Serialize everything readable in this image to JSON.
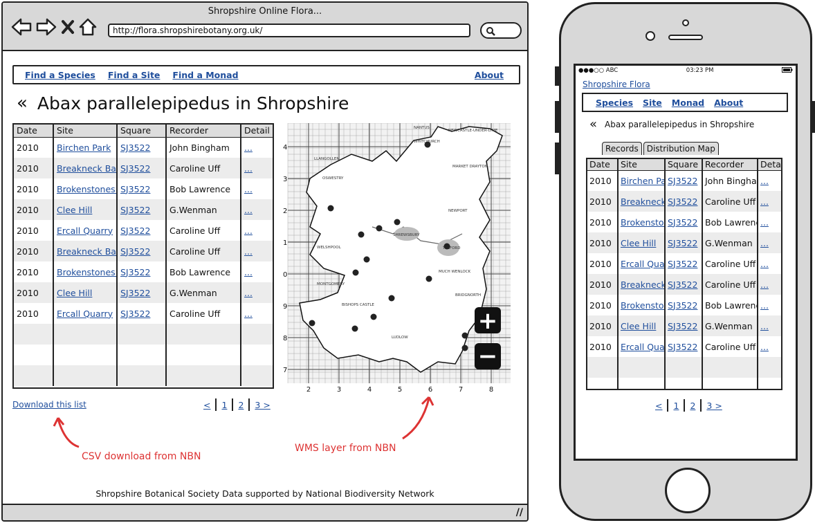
{
  "browser": {
    "window_title": "Shropshire Online Flora...",
    "url": "http://flora.shropshirebotany.org.uk/",
    "icons": [
      "back-arrow-icon",
      "forward-arrow-icon",
      "close-icon",
      "home-icon",
      "search-icon"
    ]
  },
  "menu": {
    "items": [
      "Find a Species",
      "Find a Site",
      "Find a Monad"
    ],
    "about": "About"
  },
  "page": {
    "back_glyph": "«",
    "title": "Abax parallelepipedus in Shropshire",
    "download": "Download this list",
    "footer": "Shropshire Botanical Society Data supported by National Biodiversity Network"
  },
  "table": {
    "headers": [
      "Date",
      "Site",
      "Square",
      "Recorder",
      "Detail"
    ],
    "rows": [
      [
        "2010",
        "Birchen Park",
        "SJ3522",
        "John Bingham",
        "..."
      ],
      [
        "2010",
        "Breakneck Bank",
        "SJ3522",
        "Caroline Uff",
        "..."
      ],
      [
        "2010",
        "Brokenstones Ho",
        "SJ3522",
        "Bob Lawrence",
        "..."
      ],
      [
        "2010",
        "Clee Hill",
        "SJ3522",
        "G.Wenman",
        "..."
      ],
      [
        "2010",
        "Ercall Quarry",
        "SJ3522",
        "Caroline Uff",
        "..."
      ],
      [
        "2010",
        "Breakneck Bank",
        "SJ3522",
        "Caroline Uff",
        "..."
      ],
      [
        "2010",
        "Brokenstones Ho",
        "SJ3522",
        "Bob Lawrence",
        "..."
      ],
      [
        "2010",
        "Clee Hill",
        "SJ3522",
        "G.Wenman",
        "..."
      ],
      [
        "2010",
        "Ercall Quarry",
        "SJ3522",
        "Caroline Uff",
        "..."
      ]
    ]
  },
  "pager": {
    "prev": "<",
    "p1": "1",
    "p2": "2",
    "next": "3 >"
  },
  "annotations": {
    "csv": "CSV download from NBN",
    "wms": "WMS layer from NBN",
    "color": "#d33333"
  },
  "map": {
    "y_labels": [
      "4",
      "3",
      "2",
      "1",
      "0",
      "9",
      "8",
      "7"
    ],
    "x_labels": [
      "2",
      "3",
      "4",
      "5",
      "6",
      "7",
      "8"
    ],
    "places": [
      "NANTUS",
      "WHITCHURCH",
      "NEWCASTLE-UNDER-LYME",
      "LLANGOLLEN",
      "MARKET DRAYTON",
      "OSWESTRY",
      "NEWPORT",
      "SHREWSBURY",
      "TELFORD",
      "WELSHPOOL",
      "BRIDGNORTH",
      "MUCH WENLOCK",
      "MONTGOMERY",
      "BISHOPS CASTLE",
      "LUDLOW"
    ],
    "zoom_in": "+",
    "zoom_out": "−"
  },
  "phone": {
    "carrier": "●●●○○ ABC",
    "time": "03:23 PM",
    "site_link": "Shropshire Flora",
    "menu": [
      "Species",
      "Site",
      "Monad",
      "About"
    ],
    "back_glyph": "«",
    "title": "Abax parallelepipedus in Shropshire",
    "tabs": [
      "Records",
      "Distribution Map"
    ],
    "headers": [
      "Date",
      "Site",
      "Square",
      "Recorder",
      "Detail"
    ],
    "rows": [
      [
        "2010",
        "Birchen Park",
        "SJ3522",
        "John Bingham",
        "..."
      ],
      [
        "2010",
        "Breakneck Bank",
        "SJ3522",
        "Caroline Uff",
        "..."
      ],
      [
        "2010",
        "Brokenstones Ho",
        "SJ3522",
        "Bob Lawrence",
        "..."
      ],
      [
        "2010",
        "Clee Hill",
        "SJ3522",
        "G.Wenman",
        "..."
      ],
      [
        "2010",
        "Ercall Quarry",
        "SJ3522",
        "Caroline Uff",
        "..."
      ],
      [
        "2010",
        "Breakneck Bank",
        "SJ3522",
        "Caroline Uff",
        "..."
      ],
      [
        "2010",
        "Brokenstones Ho",
        "SJ3522",
        "Bob Lawrence",
        "..."
      ],
      [
        "2010",
        "Clee Hill",
        "SJ3522",
        "G.Wenman",
        "..."
      ],
      [
        "2010",
        "Ercall Quarry",
        "SJ3522",
        "Caroline Uff",
        "..."
      ]
    ],
    "pager": {
      "prev": "<",
      "p1": "1",
      "p2": "2",
      "next": "3 >"
    }
  }
}
